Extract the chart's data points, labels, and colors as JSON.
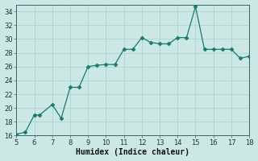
{
  "x": [
    5,
    5.5,
    6,
    6.3,
    7,
    7.5,
    8,
    8.5,
    9,
    9.5,
    10,
    10.5,
    11,
    11.5,
    12,
    12.5,
    13,
    13.5,
    14,
    14.5,
    15,
    15.5,
    16,
    16.5,
    17,
    17.5,
    18
  ],
  "y": [
    16.2,
    16.5,
    19.0,
    19.0,
    20.5,
    18.5,
    23.0,
    23.0,
    26.0,
    26.2,
    26.3,
    26.3,
    28.5,
    28.5,
    30.2,
    29.5,
    29.3,
    29.3,
    30.2,
    30.2,
    34.7,
    28.5,
    28.5,
    28.5,
    28.5,
    27.2,
    27.5
  ],
  "xlim": [
    5,
    18
  ],
  "ylim": [
    16,
    35
  ],
  "xticks": [
    5,
    6,
    7,
    8,
    9,
    10,
    11,
    12,
    13,
    14,
    15,
    16,
    17,
    18
  ],
  "yticks": [
    16,
    18,
    20,
    22,
    24,
    26,
    28,
    30,
    32,
    34
  ],
  "xlabel": "Humidex (Indice chaleur)",
  "line_color": "#1a7a6e",
  "marker": "D",
  "marker_size": 2.5,
  "bg_color": "#cce8e5",
  "grid_color": "#aad4d0",
  "axis_color": "#336666",
  "tick_label_color": "#223333",
  "xlabel_color": "#111111"
}
